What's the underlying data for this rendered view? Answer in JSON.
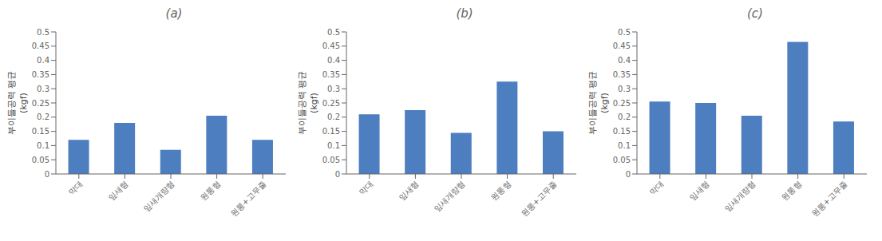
{
  "chart_data": [
    {
      "type": "bar",
      "title": "(a)",
      "categories": [
        "막대",
        "잎새형",
        "잎새개량형",
        "원통형",
        "원통+고무줄"
      ],
      "values": [
        0.12,
        0.18,
        0.085,
        0.205,
        0.12
      ],
      "color": "#4d7ebf",
      "ylabel": "부이들공력 평균\n(kgf)",
      "ylim": [
        0,
        0.5
      ],
      "yticks": [
        0,
        0.05,
        0.1,
        0.15,
        0.2,
        0.25,
        0.3,
        0.35,
        0.4,
        0.45,
        0.5
      ],
      "grid": false,
      "legend": false
    },
    {
      "type": "bar",
      "title": "(b)",
      "categories": [
        "막대",
        "잎새형",
        "잎새개량형",
        "원통형",
        "원통+고무줄"
      ],
      "values": [
        0.21,
        0.225,
        0.145,
        0.325,
        0.15
      ],
      "color": "#4d7ebf",
      "ylabel": "부이들공력 평균\n(kgf)",
      "ylim": [
        0,
        0.5
      ],
      "yticks": [
        0,
        0.05,
        0.1,
        0.15,
        0.2,
        0.25,
        0.3,
        0.35,
        0.4,
        0.45,
        0.5
      ],
      "grid": false,
      "legend": false
    },
    {
      "type": "bar",
      "title": "(c)",
      "categories": [
        "막대",
        "잎새형",
        "잎새개량형",
        "원통형",
        "원통+고무줄"
      ],
      "values": [
        0.255,
        0.25,
        0.205,
        0.465,
        0.185
      ],
      "color": "#4d7ebf",
      "ylabel": "부이들공력 평균\n(kgf)",
      "ylim": [
        0,
        0.5
      ],
      "yticks": [
        0,
        0.05,
        0.1,
        0.15,
        0.2,
        0.25,
        0.3,
        0.35,
        0.4,
        0.45,
        0.5
      ],
      "grid": false,
      "legend": false
    }
  ]
}
